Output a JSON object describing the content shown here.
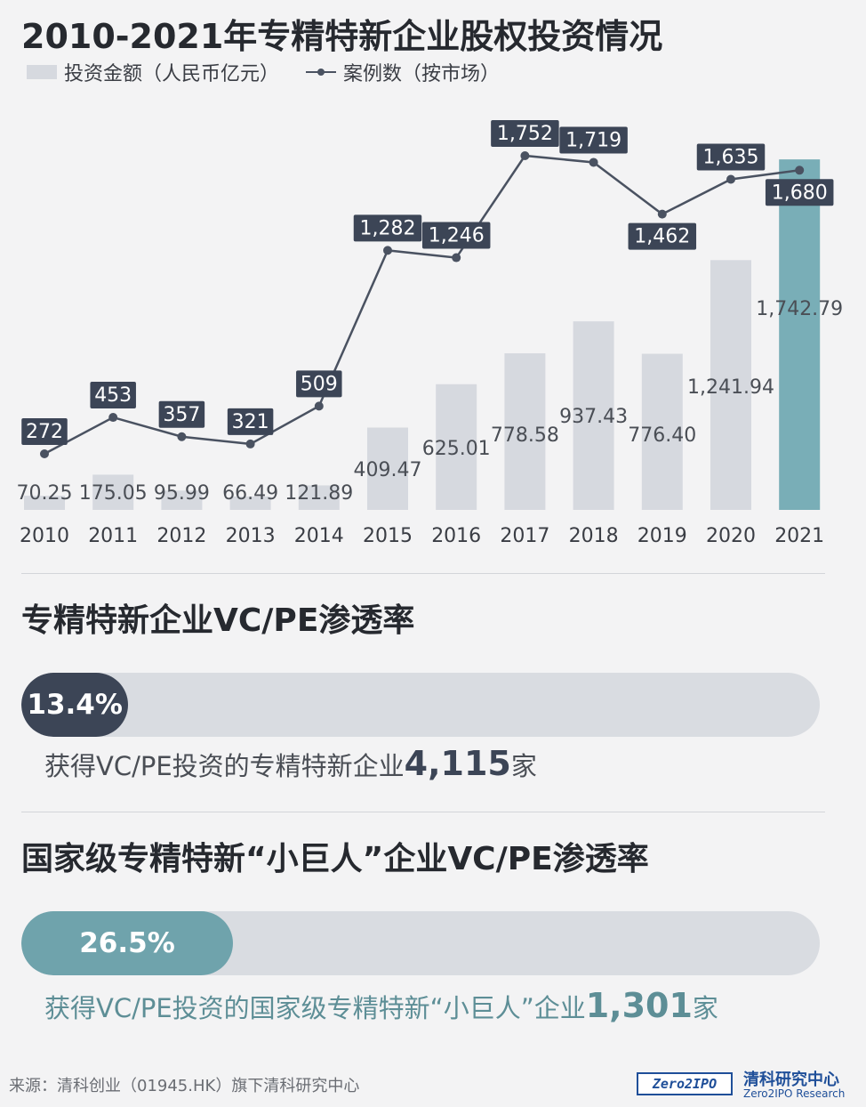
{
  "title": "2010-2021年专精特新企业股权投资情况",
  "legend": {
    "bar_label": "投资金额（人民币亿元）",
    "line_label": "案例数（按市场）"
  },
  "chart_data": {
    "type": "bar",
    "categories": [
      "2010",
      "2011",
      "2012",
      "2013",
      "2014",
      "2015",
      "2016",
      "2017",
      "2018",
      "2019",
      "2020",
      "2021"
    ],
    "series": [
      {
        "name": "投资金额（人民币亿元）",
        "type": "bar",
        "values": [
          70.25,
          175.05,
          95.99,
          66.49,
          121.89,
          409.47,
          625.01,
          778.58,
          937.43,
          776.4,
          1241.94,
          1742.79
        ],
        "labels": [
          "70.25",
          "175.05",
          "95.99",
          "66.49",
          "121.89",
          "409.47",
          "625.01",
          "778.58",
          "937.43",
          "776.40",
          "1,241.94",
          "1,742.79"
        ]
      },
      {
        "name": "案例数（按市场）",
        "type": "line",
        "values": [
          272,
          453,
          357,
          321,
          509,
          1282,
          1246,
          1752,
          1719,
          1462,
          1635,
          1680
        ],
        "labels": [
          "272",
          "453",
          "357",
          "321",
          "509",
          "1,282",
          "1,246",
          "1,752",
          "1,719",
          "1,462",
          "1,635",
          "1,680"
        ]
      }
    ],
    "colors": {
      "bar": "#d6d9df",
      "bar_highlight": "#79aeb7",
      "line": "#4a5261",
      "label_box": "#3c4556"
    }
  },
  "section1": {
    "title": "专精特新企业VC/PE渗透率",
    "percent_label": "13.4%",
    "percent": 13.4,
    "desc_prefix": "获得VC/PE投资的专精特新企业",
    "desc_number": "4,115",
    "desc_suffix": "家"
  },
  "section2": {
    "title": "国家级专精特新“小巨人”企业VC/PE渗透率",
    "percent_label": "26.5%",
    "percent": 26.5,
    "desc_prefix": "获得VC/PE投资的国家级专精特新“小巨人”企业",
    "desc_number": "1,301",
    "desc_suffix": "家"
  },
  "footer": {
    "source": "来源：清科创业（01945.HK）旗下清科研究中心",
    "logo_text": "Zero2IPO",
    "logo_cn": "清科研究中心",
    "logo_en": "Zero2IPO Research"
  }
}
